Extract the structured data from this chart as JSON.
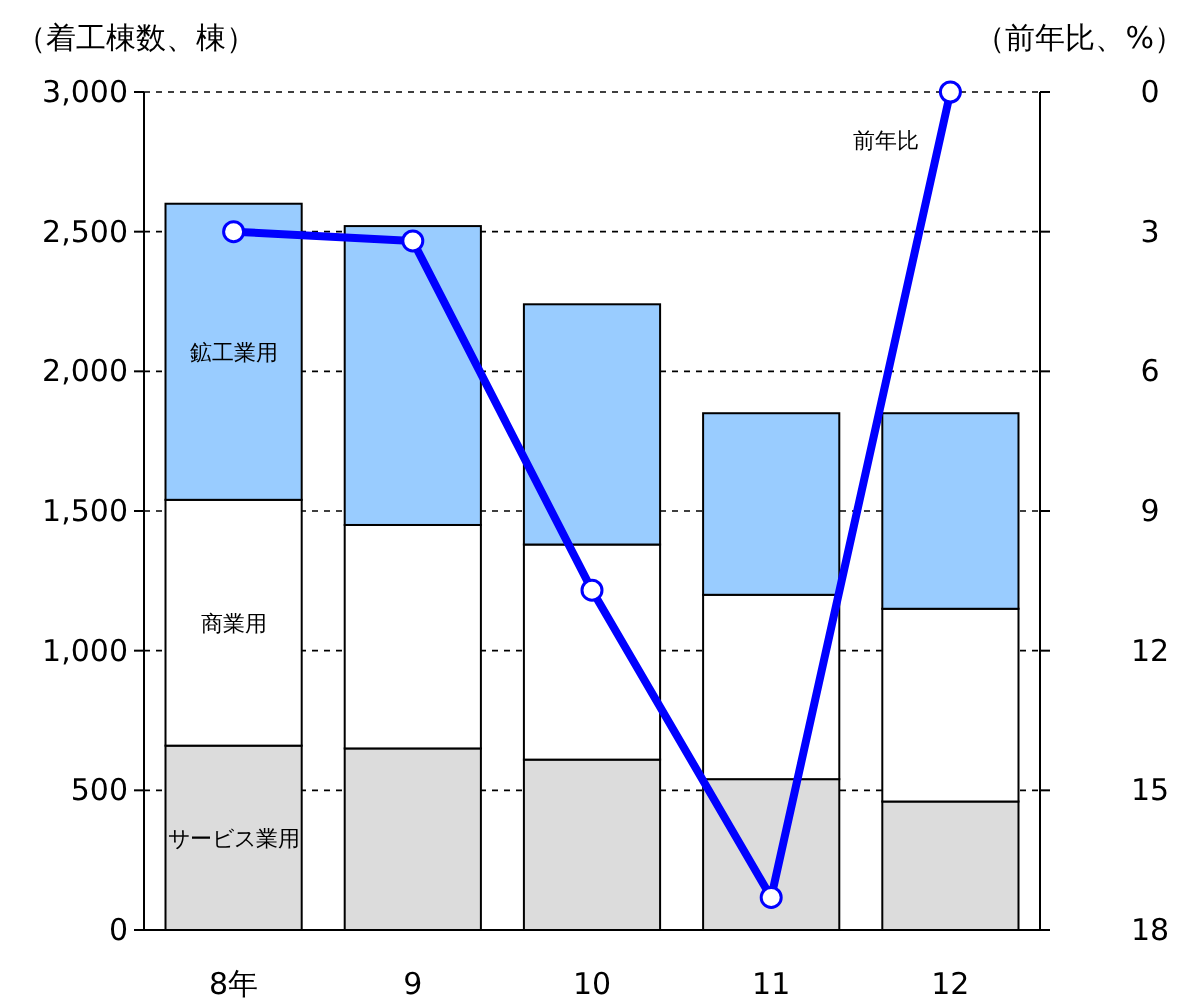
{
  "chart_data": {
    "type": "bar",
    "stacked": true,
    "categories": [
      "8年",
      "9",
      "10",
      "11",
      "12"
    ],
    "ylabel": "（着工棟数、棟）",
    "y2label": "（前年比、%）",
    "ylim": [
      0,
      3000
    ],
    "yticks": [
      {
        "value": 0,
        "label": "0"
      },
      {
        "value": 500,
        "label": "500"
      },
      {
        "value": 1000,
        "label": "1,000"
      },
      {
        "value": 1500,
        "label": "1,500"
      },
      {
        "value": 2000,
        "label": "2,000"
      },
      {
        "value": 2500,
        "label": "2,500"
      },
      {
        "value": 3000,
        "label": "3,000"
      }
    ],
    "y2lim": [
      18,
      0
    ],
    "y2ticks": [
      0,
      3,
      6,
      9,
      12,
      15,
      18
    ],
    "grid": "y",
    "series": [
      {
        "name": "サービス業用",
        "color": "#dcdcdc",
        "values": [
          660,
          650,
          610,
          540,
          460
        ]
      },
      {
        "name": "商業用",
        "color": "#ffffff",
        "values": [
          880,
          800,
          770,
          660,
          690
        ]
      },
      {
        "name": "鉱工業用",
        "color": "#99ccff",
        "values": [
          1060,
          1070,
          860,
          650,
          700
        ]
      },
      {
        "name": "前年比",
        "type": "line",
        "axis": "y2",
        "color": "#0000ff",
        "marker": "circle",
        "values": [
          3.0,
          3.2,
          10.7,
          17.3,
          0
        ]
      }
    ]
  }
}
